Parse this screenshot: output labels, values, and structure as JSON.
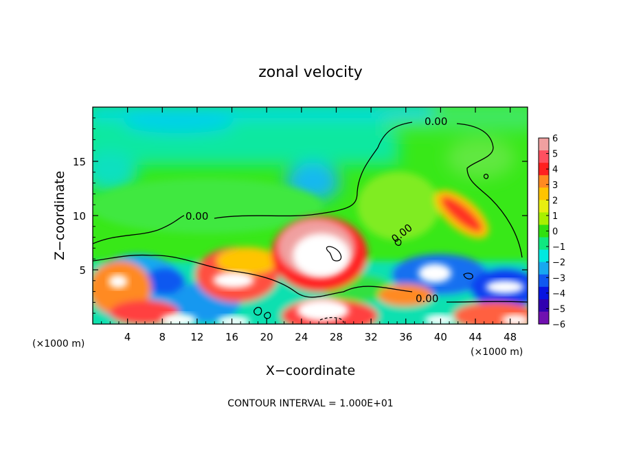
{
  "chart_data": {
    "type": "heatmap",
    "title": "zonal velocity",
    "xlabel": "X−coordinate",
    "ylabel": "Z−coordinate",
    "x_unit": "(×1000 m)",
    "y_unit": "(×1000 m)",
    "xlim": [
      0,
      50
    ],
    "ylim": [
      0,
      20
    ],
    "x_ticks": [
      4,
      8,
      12,
      16,
      20,
      24,
      28,
      32,
      36,
      40,
      44,
      48
    ],
    "y_ticks": [
      5,
      10,
      15
    ],
    "colorbar": {
      "ticks": [
        6,
        5,
        4,
        3,
        2,
        1,
        0,
        -1,
        -2,
        -3,
        -4,
        -5,
        -6
      ],
      "range": [
        -6,
        6
      ],
      "colors": [
        "#f0a0a0",
        "#ff5060",
        "#ff2020",
        "#ff8a20",
        "#ffc400",
        "#e8ee10",
        "#a8f000",
        "#30e010",
        "#10e880",
        "#00e8e0",
        "#18a8f0",
        "#1058f0",
        "#0814e0",
        "#3000b0",
        "#7010b0"
      ],
      "saturated_color": "#ffffff"
    },
    "contour_label": "0.00",
    "contour_interval_text": "CONTOUR INTERVAL = 1.000E+01",
    "features": [
      {
        "x": 26.5,
        "z": 6.5,
        "u": 8,
        "shape": "white core"
      },
      {
        "x": 16.5,
        "z": 4.0,
        "u": 7,
        "shape": "white core"
      },
      {
        "x": 3.0,
        "z": 3.5,
        "u": 7,
        "shape": "white core"
      },
      {
        "x": 43.5,
        "z": 10.5,
        "u": 5,
        "shape": "tilted red band"
      },
      {
        "x": 39.5,
        "z": 4.0,
        "u": -7,
        "shape": "white core"
      },
      {
        "x": 47.0,
        "z": 3.0,
        "u": -7,
        "shape": "white core"
      },
      {
        "x": 26.5,
        "z": 1.2,
        "u": -8,
        "shape": "white core"
      },
      {
        "x": 9.0,
        "z": 1.0,
        "u": 6,
        "shape": "white core"
      },
      {
        "x": 17.0,
        "z": 0.5,
        "u": 6,
        "shape": "white core"
      },
      {
        "x": 26.0,
        "z": 13.5,
        "u": -2.5,
        "shape": "blue cell"
      },
      {
        "x": 2.0,
        "z": 14.0,
        "u": -1.8,
        "shape": "cyan cell"
      },
      {
        "x": 8.0,
        "z": 3.5,
        "u": -4.5,
        "shape": "blue cell"
      }
    ]
  }
}
